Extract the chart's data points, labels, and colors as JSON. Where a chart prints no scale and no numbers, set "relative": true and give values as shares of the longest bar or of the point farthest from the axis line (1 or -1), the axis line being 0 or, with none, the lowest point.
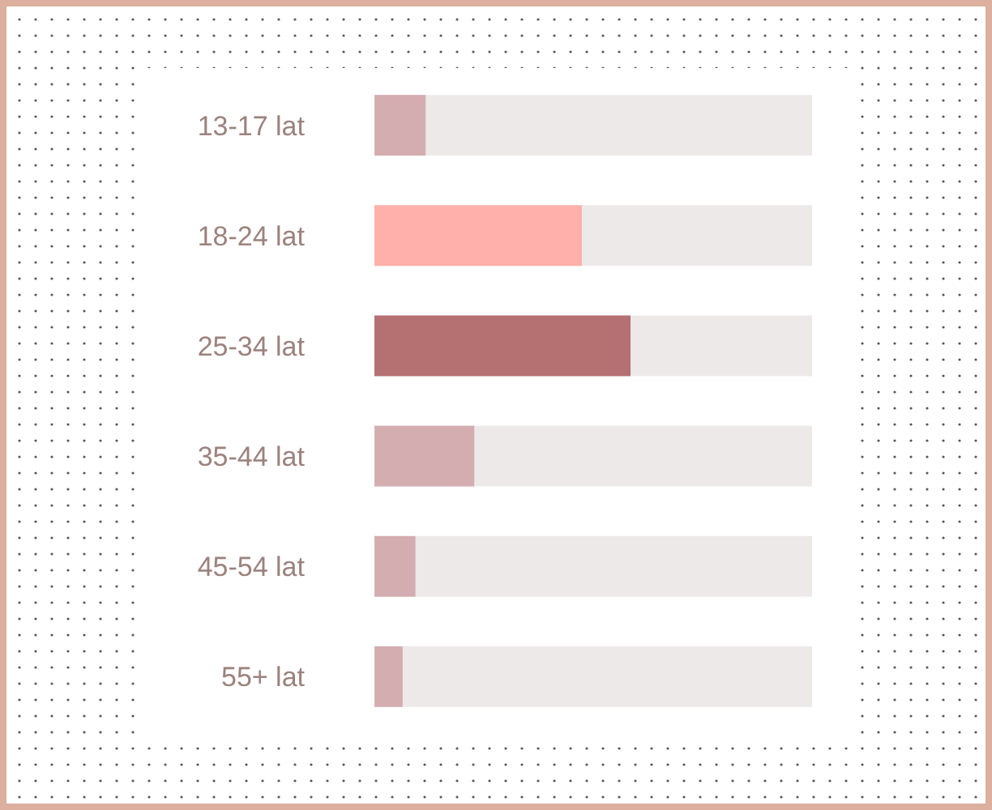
{
  "chart_data": {
    "type": "bar",
    "orientation": "horizontal",
    "relative": true,
    "categories": [
      "13-17 lat",
      "18-24 lat",
      "25-34 lat",
      "35-44 lat",
      "45-54 lat",
      "55+ lat"
    ],
    "series": [
      {
        "colors": [
          "#d4adb0",
          "#ffb0aa",
          "#b57072",
          "#d4adb0",
          "#d4adb0",
          "#d4adb0"
        ],
        "values": [
          0.2,
          0.81,
          1,
          0.39,
          0.16,
          0.11
        ]
      }
    ]
  }
}
